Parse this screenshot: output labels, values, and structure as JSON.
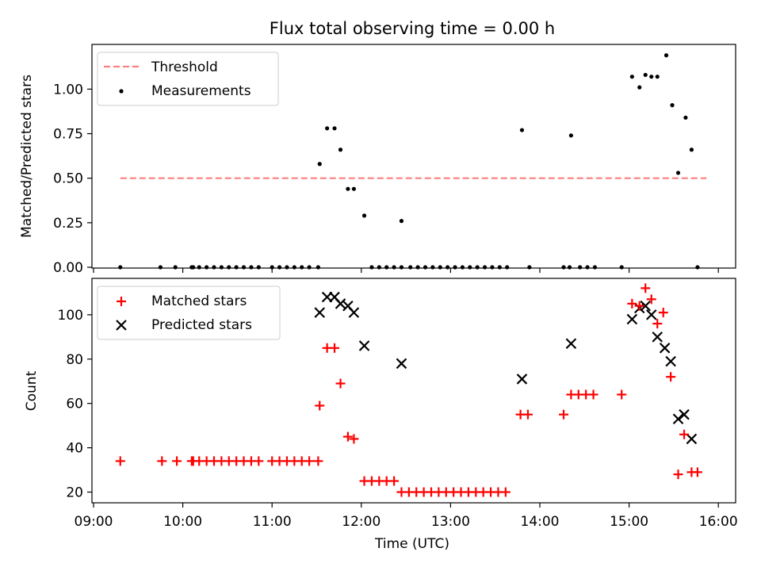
{
  "chart_data": [
    {
      "type": "scatter",
      "title": "Flux total observing time = 0.00 h",
      "xlabel": "",
      "ylabel": "Matched/Predicted stars",
      "xlim": [
        "09:00",
        "16:00"
      ],
      "ylim": [
        0,
        1.25
      ],
      "yticks": [
        "0.00",
        "0.25",
        "0.50",
        "0.75",
        "1.00"
      ],
      "legend_position": "top-left",
      "series": [
        {
          "name": "Threshold",
          "kind": "dashed-line",
          "color": "#ff7f7f",
          "points": [
            [
              "09:18",
              0.5
            ],
            [
              "15:52",
              0.5
            ]
          ]
        },
        {
          "name": "Measurements",
          "kind": "dots",
          "color": "#000000",
          "points": [
            [
              "09:18",
              0
            ],
            [
              "09:45",
              0
            ],
            [
              "09:55",
              0
            ],
            [
              "10:06",
              0
            ],
            [
              "10:07",
              0
            ],
            [
              "10:11",
              0
            ],
            [
              "10:16",
              0
            ],
            [
              "10:21",
              0
            ],
            [
              "10:26",
              0
            ],
            [
              "10:31",
              0
            ],
            [
              "10:36",
              0
            ],
            [
              "10:41",
              0
            ],
            [
              "10:46",
              0
            ],
            [
              "10:51",
              0
            ],
            [
              "11:00",
              0
            ],
            [
              "11:05",
              0
            ],
            [
              "11:10",
              0
            ],
            [
              "11:15",
              0
            ],
            [
              "11:20",
              0
            ],
            [
              "11:25",
              0
            ],
            [
              "11:31",
              0
            ],
            [
              "11:32",
              0.58
            ],
            [
              "11:37",
              0.78
            ],
            [
              "11:42",
              0.78
            ],
            [
              "11:46",
              0.66
            ],
            [
              "11:51",
              0.44
            ],
            [
              "11:55",
              0.44
            ],
            [
              "12:02",
              0.29
            ],
            [
              "12:07",
              0
            ],
            [
              "12:12",
              0
            ],
            [
              "12:17",
              0
            ],
            [
              "12:22",
              0
            ],
            [
              "12:27",
              0
            ],
            [
              "12:27",
              0.26
            ],
            [
              "12:33",
              0
            ],
            [
              "12:38",
              0
            ],
            [
              "12:43",
              0
            ],
            [
              "12:48",
              0
            ],
            [
              "12:53",
              0
            ],
            [
              "12:58",
              0
            ],
            [
              "13:03",
              0
            ],
            [
              "13:08",
              0
            ],
            [
              "13:13",
              0
            ],
            [
              "13:18",
              0
            ],
            [
              "13:23",
              0
            ],
            [
              "13:28",
              0
            ],
            [
              "13:33",
              0
            ],
            [
              "13:38",
              0
            ],
            [
              "13:48",
              0.77
            ],
            [
              "13:53",
              0
            ],
            [
              "14:16",
              0
            ],
            [
              "14:20",
              0
            ],
            [
              "14:21",
              0.74
            ],
            [
              "14:27",
              0
            ],
            [
              "14:32",
              0
            ],
            [
              "14:37",
              0
            ],
            [
              "14:55",
              0
            ],
            [
              "15:02",
              1.07
            ],
            [
              "15:07",
              1.01
            ],
            [
              "15:11",
              1.08
            ],
            [
              "15:15",
              1.07
            ],
            [
              "15:19",
              1.07
            ],
            [
              "15:25",
              1.19
            ],
            [
              "15:29",
              0.91
            ],
            [
              "15:33",
              0.53
            ],
            [
              "15:38",
              0.84
            ],
            [
              "15:42",
              0.66
            ],
            [
              "15:46",
              0
            ]
          ]
        }
      ]
    },
    {
      "type": "scatter",
      "title": "",
      "xlabel": "Time (UTC)",
      "ylabel": "Count",
      "xlim": [
        "09:00",
        "16:00"
      ],
      "ylim": [
        15,
        115
      ],
      "yticks": [
        "20",
        "40",
        "60",
        "80",
        "100"
      ],
      "xticks": [
        "09:00",
        "10:00",
        "11:00",
        "12:00",
        "13:00",
        "14:00",
        "15:00",
        "16:00"
      ],
      "legend_position": "top-left",
      "series": [
        {
          "name": "Matched stars",
          "marker": "plus",
          "color": "#ff0000",
          "points": [
            [
              "09:18",
              34
            ],
            [
              "09:46",
              34
            ],
            [
              "09:56",
              34
            ],
            [
              "10:06",
              34
            ],
            [
              "10:07",
              34
            ],
            [
              "10:11",
              34
            ],
            [
              "10:16",
              34
            ],
            [
              "10:21",
              34
            ],
            [
              "10:26",
              34
            ],
            [
              "10:31",
              34
            ],
            [
              "10:36",
              34
            ],
            [
              "10:41",
              34
            ],
            [
              "10:46",
              34
            ],
            [
              "10:51",
              34
            ],
            [
              "11:00",
              34
            ],
            [
              "11:05",
              34
            ],
            [
              "11:10",
              34
            ],
            [
              "11:15",
              34
            ],
            [
              "11:20",
              34
            ],
            [
              "11:25",
              34
            ],
            [
              "11:31",
              34
            ],
            [
              "11:32",
              59
            ],
            [
              "11:37",
              85
            ],
            [
              "11:42",
              85
            ],
            [
              "11:46",
              69
            ],
            [
              "11:51",
              45
            ],
            [
              "11:55",
              44
            ],
            [
              "12:02",
              25
            ],
            [
              "12:07",
              25
            ],
            [
              "12:12",
              25
            ],
            [
              "12:17",
              25
            ],
            [
              "12:22",
              25
            ],
            [
              "12:27",
              20
            ],
            [
              "12:32",
              20
            ],
            [
              "12:37",
              20
            ],
            [
              "12:42",
              20
            ],
            [
              "12:47",
              20
            ],
            [
              "12:52",
              20
            ],
            [
              "12:57",
              20
            ],
            [
              "13:02",
              20
            ],
            [
              "13:07",
              20
            ],
            [
              "13:12",
              20
            ],
            [
              "13:17",
              20
            ],
            [
              "13:22",
              20
            ],
            [
              "13:27",
              20
            ],
            [
              "13:32",
              20
            ],
            [
              "13:37",
              20
            ],
            [
              "13:47",
              55
            ],
            [
              "13:52",
              55
            ],
            [
              "14:16",
              55
            ],
            [
              "14:21",
              64
            ],
            [
              "14:26",
              64
            ],
            [
              "14:31",
              64
            ],
            [
              "14:36",
              64
            ],
            [
              "14:55",
              64
            ],
            [
              "15:02",
              105
            ],
            [
              "15:07",
              104
            ],
            [
              "15:11",
              112
            ],
            [
              "15:15",
              107
            ],
            [
              "15:19",
              96
            ],
            [
              "15:23",
              101
            ],
            [
              "15:28",
              72
            ],
            [
              "15:33",
              28
            ],
            [
              "15:37",
              46
            ],
            [
              "15:42",
              29
            ],
            [
              "15:46",
              29
            ]
          ]
        },
        {
          "name": "Predicted stars",
          "marker": "x",
          "color": "#000000",
          "points": [
            [
              "11:32",
              101
            ],
            [
              "11:37",
              108
            ],
            [
              "11:42",
              108
            ],
            [
              "11:46",
              105
            ],
            [
              "11:51",
              104
            ],
            [
              "11:55",
              101
            ],
            [
              "12:02",
              86
            ],
            [
              "12:27",
              78
            ],
            [
              "13:48",
              71
            ],
            [
              "14:21",
              87
            ],
            [
              "15:02",
              98
            ],
            [
              "15:07",
              103
            ],
            [
              "15:11",
              104
            ],
            [
              "15:15",
              100
            ],
            [
              "15:19",
              90
            ],
            [
              "15:24",
              85
            ],
            [
              "15:28",
              79
            ],
            [
              "15:33",
              53
            ],
            [
              "15:37",
              55
            ],
            [
              "15:42",
              44
            ]
          ]
        }
      ]
    }
  ]
}
